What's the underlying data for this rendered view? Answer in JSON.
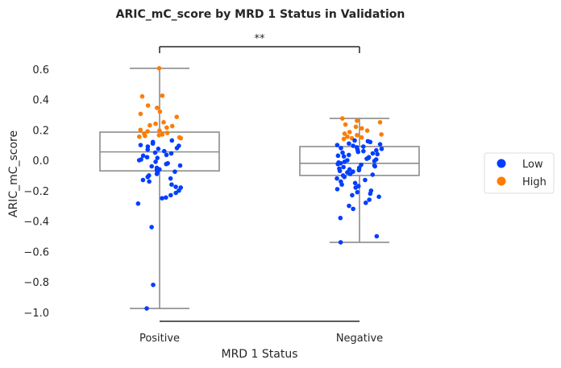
{
  "chart_data": {
    "type": "box-strip",
    "title": "ARIC_mC_score by MRD 1 Status in Validation",
    "xlabel": "MRD 1 Status",
    "ylabel": "ARIC_mC_score",
    "ylim": [
      -1.06,
      0.68
    ],
    "yticks": [
      0.6,
      0.4,
      0.2,
      0.0,
      -0.2,
      -0.4,
      -0.6,
      -0.8,
      -1.0
    ],
    "ytick_labels": [
      "0.6",
      "0.4",
      "0.2",
      "0.0",
      "−0.2",
      "−0.4",
      "−0.6",
      "−0.8",
      "−1.0"
    ],
    "categories": [
      "Positive",
      "Negative"
    ],
    "significance": "**",
    "legend": {
      "placement": "right",
      "entries": [
        {
          "name": "Low",
          "color": "#023eff"
        },
        {
          "name": "High",
          "color": "#ff7c00"
        }
      ]
    },
    "boxes": [
      {
        "category": "Positive",
        "q1": -0.07,
        "median": 0.055,
        "q3": 0.185,
        "whisker_low": -0.975,
        "whisker_high": 0.605
      },
      {
        "category": "Negative",
        "q1": -0.1,
        "median": -0.02,
        "q3": 0.09,
        "whisker_low": -0.54,
        "whisker_high": 0.275
      }
    ],
    "series": [
      {
        "name": "High",
        "color": "#ff7c00",
        "points": [
          {
            "x": "Positive",
            "y": 0.605
          },
          {
            "x": "Positive",
            "y": 0.425
          },
          {
            "x": "Positive",
            "y": 0.42
          },
          {
            "x": "Positive",
            "y": 0.36
          },
          {
            "x": "Positive",
            "y": 0.345
          },
          {
            "x": "Positive",
            "y": 0.32
          },
          {
            "x": "Positive",
            "y": 0.305
          },
          {
            "x": "Positive",
            "y": 0.285
          },
          {
            "x": "Positive",
            "y": 0.25
          },
          {
            "x": "Positive",
            "y": 0.24
          },
          {
            "x": "Positive",
            "y": 0.23
          },
          {
            "x": "Positive",
            "y": 0.225
          },
          {
            "x": "Positive",
            "y": 0.215
          },
          {
            "x": "Positive",
            "y": 0.2
          },
          {
            "x": "Positive",
            "y": 0.195
          },
          {
            "x": "Positive",
            "y": 0.19
          },
          {
            "x": "Positive",
            "y": 0.18
          },
          {
            "x": "Positive",
            "y": 0.175
          },
          {
            "x": "Positive",
            "y": 0.17
          },
          {
            "x": "Positive",
            "y": 0.165
          },
          {
            "x": "Positive",
            "y": 0.16
          },
          {
            "x": "Positive",
            "y": 0.155
          },
          {
            "x": "Positive",
            "y": 0.15
          },
          {
            "x": "Positive",
            "y": 0.145
          },
          {
            "x": "Negative",
            "y": 0.275
          },
          {
            "x": "Negative",
            "y": 0.26
          },
          {
            "x": "Negative",
            "y": 0.25
          },
          {
            "x": "Negative",
            "y": 0.235
          },
          {
            "x": "Negative",
            "y": 0.22
          },
          {
            "x": "Negative",
            "y": 0.21
          },
          {
            "x": "Negative",
            "y": 0.195
          },
          {
            "x": "Negative",
            "y": 0.185
          },
          {
            "x": "Negative",
            "y": 0.175
          },
          {
            "x": "Negative",
            "y": 0.17
          },
          {
            "x": "Negative",
            "y": 0.165
          },
          {
            "x": "Negative",
            "y": 0.155
          },
          {
            "x": "Negative",
            "y": 0.15
          },
          {
            "x": "Negative",
            "y": 0.145
          },
          {
            "x": "Negative",
            "y": 0.14
          }
        ]
      },
      {
        "name": "Low",
        "color": "#023eff",
        "points": [
          {
            "x": "Positive",
            "y": 0.13
          },
          {
            "x": "Positive",
            "y": 0.12
          },
          {
            "x": "Positive",
            "y": 0.11
          },
          {
            "x": "Positive",
            "y": 0.1
          },
          {
            "x": "Positive",
            "y": 0.095
          },
          {
            "x": "Positive",
            "y": 0.09
          },
          {
            "x": "Positive",
            "y": 0.08
          },
          {
            "x": "Positive",
            "y": 0.075
          },
          {
            "x": "Positive",
            "y": 0.07
          },
          {
            "x": "Positive",
            "y": 0.06
          },
          {
            "x": "Positive",
            "y": 0.05
          },
          {
            "x": "Positive",
            "y": 0.045
          },
          {
            "x": "Positive",
            "y": 0.035
          },
          {
            "x": "Positive",
            "y": 0.03
          },
          {
            "x": "Positive",
            "y": 0.02
          },
          {
            "x": "Positive",
            "y": 0.015
          },
          {
            "x": "Positive",
            "y": 0.005
          },
          {
            "x": "Positive",
            "y": 0.0
          },
          {
            "x": "Positive",
            "y": -0.01
          },
          {
            "x": "Positive",
            "y": -0.02
          },
          {
            "x": "Positive",
            "y": -0.025
          },
          {
            "x": "Positive",
            "y": -0.035
          },
          {
            "x": "Positive",
            "y": -0.04
          },
          {
            "x": "Positive",
            "y": -0.05
          },
          {
            "x": "Positive",
            "y": -0.06
          },
          {
            "x": "Positive",
            "y": -0.065
          },
          {
            "x": "Positive",
            "y": -0.075
          },
          {
            "x": "Positive",
            "y": -0.08
          },
          {
            "x": "Positive",
            "y": -0.09
          },
          {
            "x": "Positive",
            "y": -0.1
          },
          {
            "x": "Positive",
            "y": -0.11
          },
          {
            "x": "Positive",
            "y": -0.12
          },
          {
            "x": "Positive",
            "y": -0.13
          },
          {
            "x": "Positive",
            "y": -0.14
          },
          {
            "x": "Positive",
            "y": -0.16
          },
          {
            "x": "Positive",
            "y": -0.175
          },
          {
            "x": "Positive",
            "y": -0.18
          },
          {
            "x": "Positive",
            "y": -0.2
          },
          {
            "x": "Positive",
            "y": -0.215
          },
          {
            "x": "Positive",
            "y": -0.23
          },
          {
            "x": "Positive",
            "y": -0.245
          },
          {
            "x": "Positive",
            "y": -0.25
          },
          {
            "x": "Positive",
            "y": -0.285
          },
          {
            "x": "Positive",
            "y": -0.44
          },
          {
            "x": "Positive",
            "y": -0.82
          },
          {
            "x": "Positive",
            "y": -0.975
          },
          {
            "x": "Negative",
            "y": 0.13
          },
          {
            "x": "Negative",
            "y": 0.125
          },
          {
            "x": "Negative",
            "y": 0.12
          },
          {
            "x": "Negative",
            "y": 0.11
          },
          {
            "x": "Negative",
            "y": 0.105
          },
          {
            "x": "Negative",
            "y": 0.1
          },
          {
            "x": "Negative",
            "y": 0.095
          },
          {
            "x": "Negative",
            "y": 0.09
          },
          {
            "x": "Negative",
            "y": 0.085
          },
          {
            "x": "Negative",
            "y": 0.08
          },
          {
            "x": "Negative",
            "y": 0.075
          },
          {
            "x": "Negative",
            "y": 0.07
          },
          {
            "x": "Negative",
            "y": 0.065
          },
          {
            "x": "Negative",
            "y": 0.06
          },
          {
            "x": "Negative",
            "y": 0.055
          },
          {
            "x": "Negative",
            "y": 0.05
          },
          {
            "x": "Negative",
            "y": 0.045
          },
          {
            "x": "Negative",
            "y": 0.04
          },
          {
            "x": "Negative",
            "y": 0.035
          },
          {
            "x": "Negative",
            "y": 0.03
          },
          {
            "x": "Negative",
            "y": 0.025
          },
          {
            "x": "Negative",
            "y": 0.02
          },
          {
            "x": "Negative",
            "y": 0.015
          },
          {
            "x": "Negative",
            "y": 0.01
          },
          {
            "x": "Negative",
            "y": 0.005
          },
          {
            "x": "Negative",
            "y": 0.0
          },
          {
            "x": "Negative",
            "y": -0.005
          },
          {
            "x": "Negative",
            "y": -0.01
          },
          {
            "x": "Negative",
            "y": -0.015
          },
          {
            "x": "Negative",
            "y": -0.02
          },
          {
            "x": "Negative",
            "y": -0.025
          },
          {
            "x": "Negative",
            "y": -0.03
          },
          {
            "x": "Negative",
            "y": -0.035
          },
          {
            "x": "Negative",
            "y": -0.04
          },
          {
            "x": "Negative",
            "y": -0.045
          },
          {
            "x": "Negative",
            "y": -0.05
          },
          {
            "x": "Negative",
            "y": -0.055
          },
          {
            "x": "Negative",
            "y": -0.06
          },
          {
            "x": "Negative",
            "y": -0.065
          },
          {
            "x": "Negative",
            "y": -0.07
          },
          {
            "x": "Negative",
            "y": -0.075
          },
          {
            "x": "Negative",
            "y": -0.08
          },
          {
            "x": "Negative",
            "y": -0.09
          },
          {
            "x": "Negative",
            "y": -0.095
          },
          {
            "x": "Negative",
            "y": -0.1
          },
          {
            "x": "Negative",
            "y": -0.11
          },
          {
            "x": "Negative",
            "y": -0.12
          },
          {
            "x": "Negative",
            "y": -0.13
          },
          {
            "x": "Negative",
            "y": -0.14
          },
          {
            "x": "Negative",
            "y": -0.15
          },
          {
            "x": "Negative",
            "y": -0.16
          },
          {
            "x": "Negative",
            "y": -0.17
          },
          {
            "x": "Negative",
            "y": -0.18
          },
          {
            "x": "Negative",
            "y": -0.19
          },
          {
            "x": "Negative",
            "y": -0.2
          },
          {
            "x": "Negative",
            "y": -0.21
          },
          {
            "x": "Negative",
            "y": -0.22
          },
          {
            "x": "Negative",
            "y": -0.23
          },
          {
            "x": "Negative",
            "y": -0.24
          },
          {
            "x": "Negative",
            "y": -0.26
          },
          {
            "x": "Negative",
            "y": -0.28
          },
          {
            "x": "Negative",
            "y": -0.3
          },
          {
            "x": "Negative",
            "y": -0.32
          },
          {
            "x": "Negative",
            "y": -0.38
          },
          {
            "x": "Negative",
            "y": -0.5
          },
          {
            "x": "Negative",
            "y": -0.54
          }
        ]
      }
    ]
  }
}
